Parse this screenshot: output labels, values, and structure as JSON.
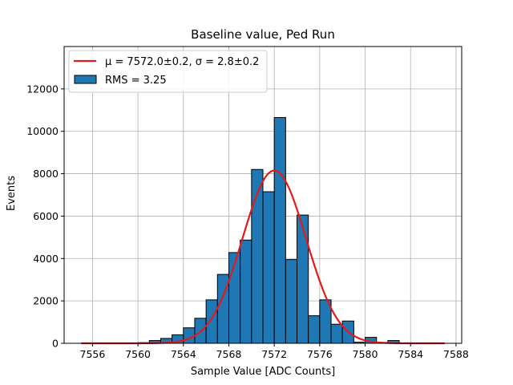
{
  "chart_data": {
    "type": "bar",
    "title": "Baseline value, Ped Run",
    "xlabel": "Sample Value [ADC Counts]",
    "ylabel": "Events",
    "xlim": [
      7553.5,
      7588.5
    ],
    "ylim": [
      0,
      14000
    ],
    "xticks": [
      7556,
      7560,
      7564,
      7568,
      7572,
      7576,
      7580,
      7584,
      7588
    ],
    "yticks": [
      0,
      2000,
      4000,
      6000,
      8000,
      10000,
      12000
    ],
    "grid": true,
    "legend_position": "top-left",
    "bar_color": "#1f77b4",
    "fit_color": "#e31a1c",
    "bins": [
      {
        "left": 7560.0,
        "right": 7561.0,
        "value": 30
      },
      {
        "left": 7561.0,
        "right": 7562.0,
        "value": 130
      },
      {
        "left": 7562.0,
        "right": 7563.0,
        "value": 230
      },
      {
        "left": 7563.0,
        "right": 7564.0,
        "value": 400
      },
      {
        "left": 7564.0,
        "right": 7565.0,
        "value": 730
      },
      {
        "left": 7565.0,
        "right": 7566.0,
        "value": 1180
      },
      {
        "left": 7566.0,
        "right": 7567.0,
        "value": 2050
      },
      {
        "left": 7567.0,
        "right": 7568.0,
        "value": 3250
      },
      {
        "left": 7568.0,
        "right": 7569.0,
        "value": 4280
      },
      {
        "left": 7569.0,
        "right": 7570.0,
        "value": 4870
      },
      {
        "left": 7570.0,
        "right": 7571.0,
        "value": 8200
      },
      {
        "left": 7571.0,
        "right": 7572.0,
        "value": 7150
      },
      {
        "left": 7572.0,
        "right": 7573.0,
        "value": 10650
      },
      {
        "left": 7573.0,
        "right": 7574.0,
        "value": 3950
      },
      {
        "left": 7574.0,
        "right": 7575.0,
        "value": 6050
      },
      {
        "left": 7575.0,
        "right": 7576.0,
        "value": 1300
      },
      {
        "left": 7576.0,
        "right": 7577.0,
        "value": 2050
      },
      {
        "left": 7577.0,
        "right": 7578.0,
        "value": 900
      },
      {
        "left": 7578.0,
        "right": 7579.0,
        "value": 1050
      },
      {
        "left": 7579.0,
        "right": 7580.0,
        "value": 50
      },
      {
        "left": 7580.0,
        "right": 7581.0,
        "value": 280
      },
      {
        "left": 7581.0,
        "right": 7582.0,
        "value": 40
      },
      {
        "left": 7582.0,
        "right": 7583.0,
        "value": 130
      },
      {
        "left": 7583.0,
        "right": 7584.0,
        "value": 20
      }
    ],
    "fit": {
      "mu": 7572.0,
      "sigma": 2.8,
      "peak": 8150,
      "x_range": [
        7555,
        7587
      ]
    },
    "legend": [
      {
        "label": "μ = 7572.0±0.2, σ = 2.8±0.2",
        "kind": "line"
      },
      {
        "label": "RMS = 3.25",
        "kind": "patch"
      }
    ]
  }
}
